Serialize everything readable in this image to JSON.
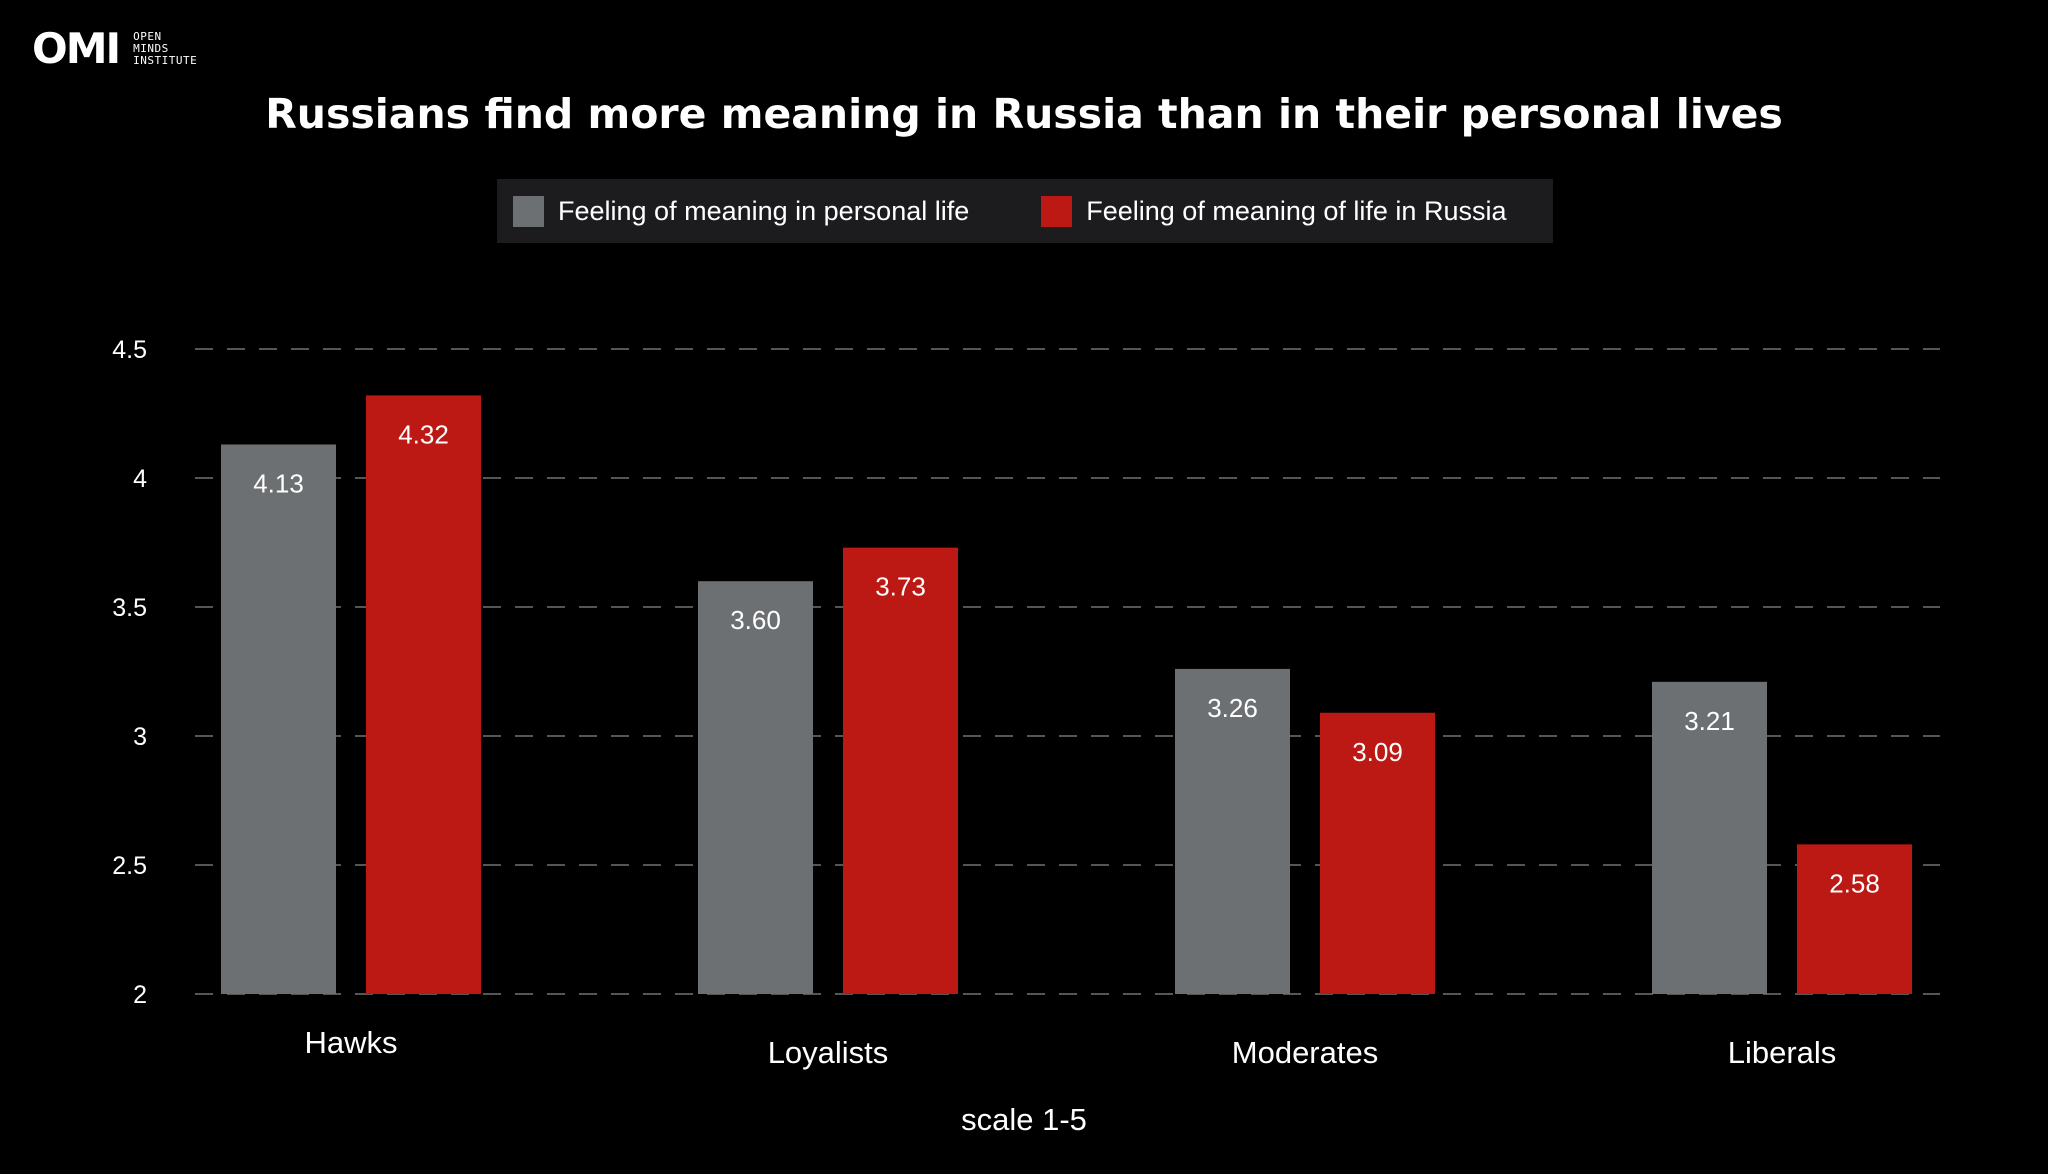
{
  "logo": {
    "mark": "OMI",
    "lines": [
      "OPEN",
      "MINDS",
      "INSTITUTE"
    ]
  },
  "chart_data": {
    "type": "bar",
    "title": "Russians find more meaning in Russia than in their personal lives",
    "categories": [
      "Hawks",
      "Loyalists",
      "Moderates",
      "Liberals"
    ],
    "series": [
      {
        "name": "Feeling of meaning in personal life",
        "color": "#6d7072",
        "values": [
          4.13,
          3.6,
          3.26,
          3.21
        ],
        "labels": [
          "4.13",
          "3.60",
          "3.26",
          "3.21"
        ]
      },
      {
        "name": "Feeling of meaning of life in Russia",
        "color": "#bd1914",
        "values": [
          4.32,
          3.73,
          3.09,
          2.58
        ],
        "labels": [
          "4.32",
          "3.73",
          "3.09",
          "2.58"
        ]
      }
    ],
    "ylim": [
      2,
      4.5
    ],
    "yticks": [
      "2",
      "2.5",
      "3",
      "3.5",
      "4",
      "4.5"
    ],
    "grid": true,
    "legend": "top-center",
    "xlabel": "scale 1-5",
    "ylabel": ""
  }
}
